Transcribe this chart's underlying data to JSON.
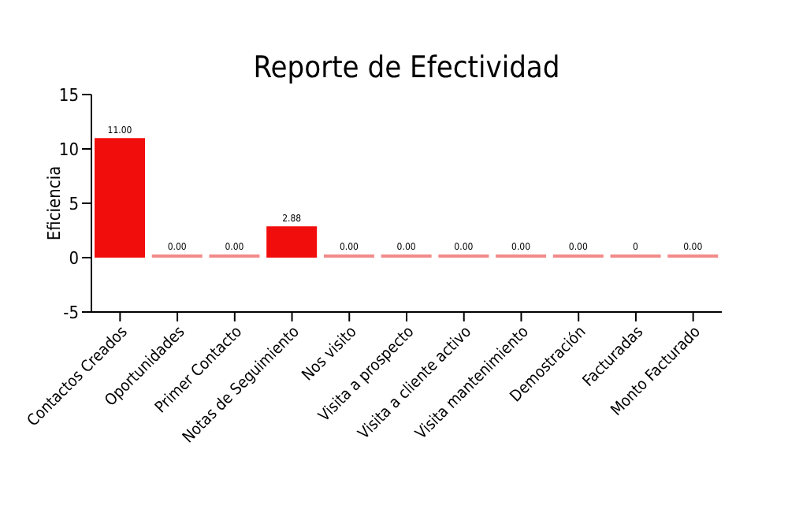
{
  "chart_data": {
    "type": "bar",
    "title": "Reporte de Efectividad",
    "ylabel": "Eficiencia",
    "categories": [
      "Contactos Creados",
      "Oportunidades",
      "Primer Contacto",
      "Notas de Seguimiento",
      "Nos visito",
      "Visita a prospecto",
      "Visita a cliente activo",
      "Visita mantenimiento",
      "Demostración",
      "Facturadas",
      "Monto Facturado"
    ],
    "values": [
      11,
      0,
      0,
      2.88,
      0,
      0,
      0,
      0,
      0,
      0,
      0
    ],
    "colors": [
      "#f20d0d",
      "#f28a8a",
      "#f28a8a",
      "#f20d0d",
      "#f28a8a",
      "#f28a8a",
      "#f28a8a",
      "#f28a8a",
      "#f28a8a",
      "#f28a8a",
      "#f28a8a"
    ],
    "value_labels": [
      "11.00",
      "0.00",
      "0.00",
      "2.88",
      "0.00",
      "0.00",
      "0.00",
      "0.00",
      "0.00",
      "0",
      "0.00"
    ],
    "ylim": [
      -5,
      15
    ],
    "yticks": [
      -5,
      0,
      5,
      10,
      15
    ],
    "grid": false,
    "legend": false
  }
}
